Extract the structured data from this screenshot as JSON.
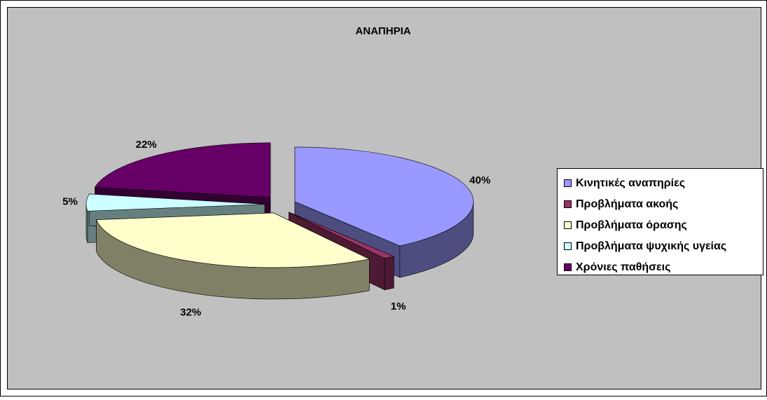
{
  "chart_data": {
    "type": "pie",
    "title": "ΑΝΑΠΗΡΙΑ",
    "categories": [
      "Κινητικές αναπηρίες",
      "Προβλήματα ακοής",
      "Προβλήματα όρασης",
      "Προβλήματα ψυχικής υγείας",
      "Χρόνιες παθήσεις"
    ],
    "values": [
      40,
      1,
      32,
      5,
      22
    ],
    "value_labels": [
      "40%",
      "1%",
      "32%",
      "5%",
      "22%"
    ],
    "colors": [
      "#9999ff",
      "#993366",
      "#ffffcc",
      "#ccffff",
      "#660066"
    ],
    "legend": "right"
  }
}
